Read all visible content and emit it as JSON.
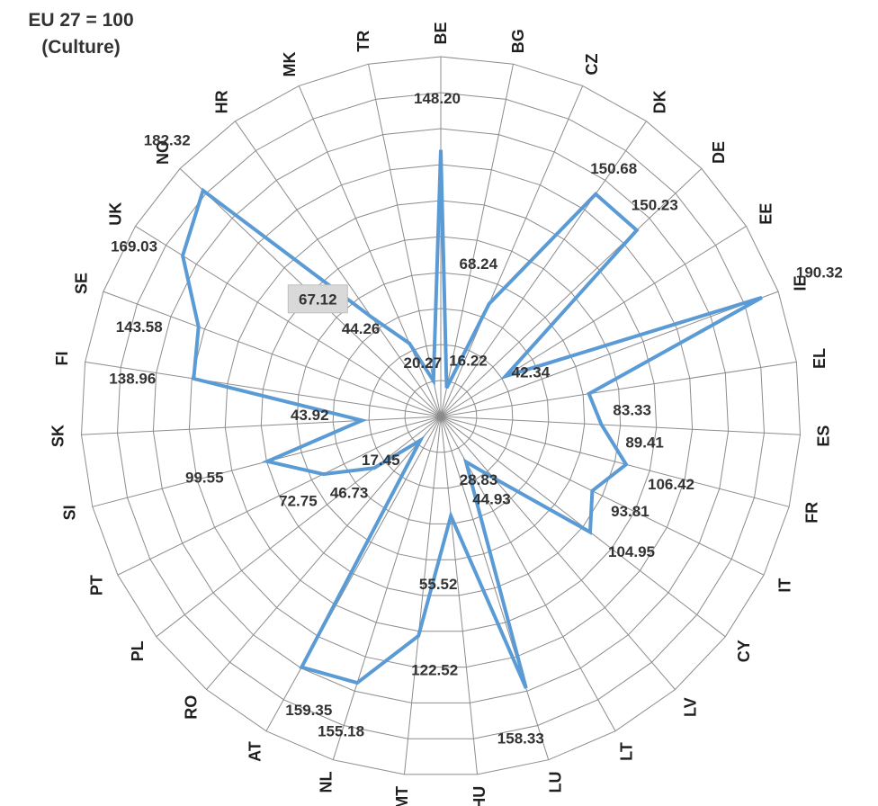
{
  "chart_data": {
    "type": "radar",
    "title": [
      "EU 27 = 100",
      "(Culture)"
    ],
    "categories": [
      "BE",
      "BG",
      "CZ",
      "DK",
      "DE",
      "EE",
      "IE",
      "EL",
      "ES",
      "FR",
      "IT",
      "CY",
      "LV",
      "LT",
      "LU",
      "HU",
      "MT",
      "NL",
      "AT",
      "RO",
      "PL",
      "PT",
      "SI",
      "SK",
      "FI",
      "SE",
      "UK",
      "NO",
      "HR",
      "MK",
      "TR"
    ],
    "series": [
      {
        "color": "#5b9bd5",
        "values": [
          148.2,
          16.22,
          68.24,
          150.68,
          150.23,
          42.34,
          190.32,
          83.33,
          89.41,
          106.42,
          93.81,
          104.95,
          44.93,
          28.83,
          158.33,
          55.52,
          122.52,
          155.18,
          159.35,
          17.45,
          46.73,
          72.75,
          99.55,
          43.92,
          138.96,
          143.58,
          169.03,
          182.32,
          67.12,
          44.26,
          20.27
        ]
      }
    ],
    "data_labels": [
      {
        "index": 0,
        "text": "148.20"
      },
      {
        "index": 1,
        "text": "16.22"
      },
      {
        "index": 2,
        "text": "68.24"
      },
      {
        "index": 3,
        "text": "150.68"
      },
      {
        "index": 4,
        "text": "150.23"
      },
      {
        "index": 5,
        "text": "42.34"
      },
      {
        "index": 6,
        "text": "190.32"
      },
      {
        "index": 7,
        "text": "83.33"
      },
      {
        "index": 8,
        "text": "89.41"
      },
      {
        "index": 9,
        "text": "106.42"
      },
      {
        "index": 10,
        "text": "93.81"
      },
      {
        "index": 11,
        "text": "104.95"
      },
      {
        "index": 12,
        "text": "44.93"
      },
      {
        "index": 13,
        "text": "28.83"
      },
      {
        "index": 14,
        "text": "158.33"
      },
      {
        "index": 15,
        "text": "55.52"
      },
      {
        "index": 16,
        "text": "122.52"
      },
      {
        "index": 17,
        "text": "155.18"
      },
      {
        "index": 18,
        "text": "159.35"
      },
      {
        "index": 19,
        "text": "17.45"
      },
      {
        "index": 20,
        "text": "46.73"
      },
      {
        "index": 21,
        "text": "72.75"
      },
      {
        "index": 22,
        "text": "99.55"
      },
      {
        "index": 23,
        "text": "43.92"
      },
      {
        "index": 24,
        "text": "138.96"
      },
      {
        "index": 25,
        "text": "143.58"
      },
      {
        "index": 26,
        "text": "169.03"
      },
      {
        "index": 27,
        "text": "182.32"
      },
      {
        "index": 28,
        "text": "67.12",
        "highlighted": true
      },
      {
        "index": 29,
        "text": "44.26"
      },
      {
        "index": 30,
        "text": "20.27"
      }
    ],
    "radial_range": [
      0,
      200
    ],
    "gridline_rings": 10,
    "grid": true,
    "legend": "none"
  }
}
